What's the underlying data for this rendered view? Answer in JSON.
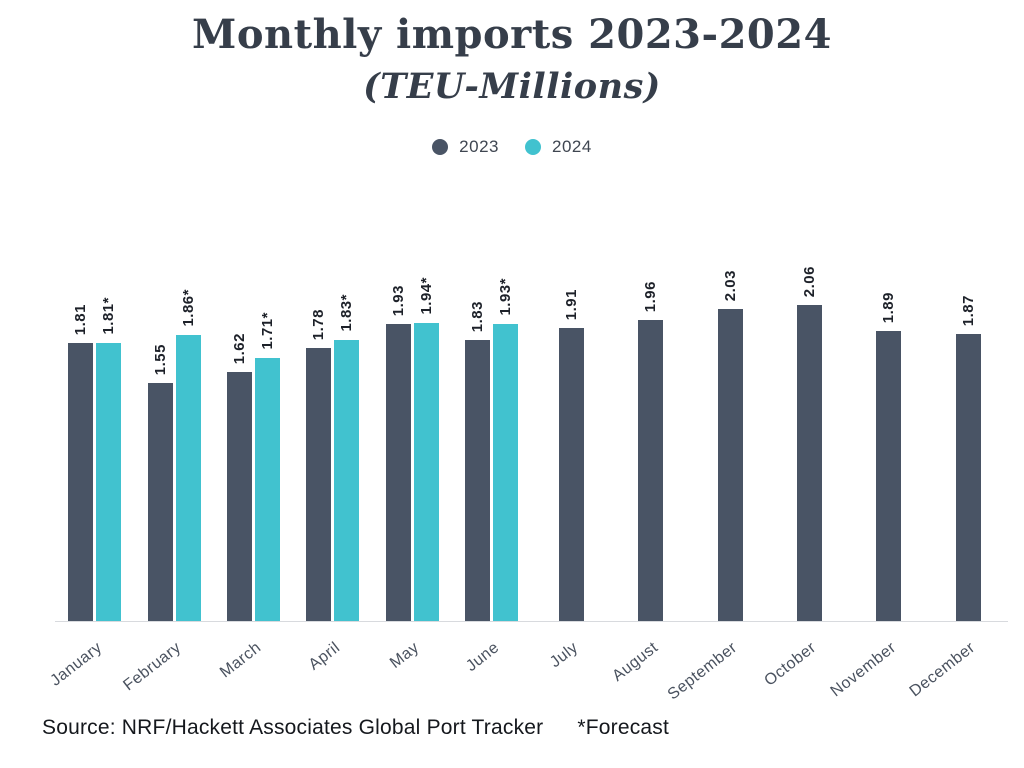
{
  "title": "Monthly imports 2023-2024",
  "subtitle": "(TEU-Millions)",
  "chart_data": {
    "type": "bar",
    "title": "Monthly imports 2023-2024",
    "subtitle": "(TEU-Millions)",
    "categories": [
      "January",
      "February",
      "March",
      "April",
      "May",
      "June",
      "July",
      "August",
      "September",
      "October",
      "November",
      "December"
    ],
    "series": [
      {
        "name": "2023",
        "color": "#495465",
        "values": [
          1.81,
          1.55,
          1.62,
          1.78,
          1.93,
          1.83,
          1.91,
          1.96,
          2.03,
          2.06,
          1.89,
          1.87
        ],
        "labels": [
          "1.81",
          "1.55",
          "1.62",
          "1.78",
          "1.93",
          "1.83",
          "1.91",
          "1.96",
          "2.03",
          "2.06",
          "1.89",
          "1.87"
        ]
      },
      {
        "name": "2024",
        "color": "#41C2CF",
        "values": [
          1.81,
          1.86,
          1.71,
          1.83,
          1.94,
          1.93,
          null,
          null,
          null,
          null,
          null,
          null
        ],
        "labels": [
          "1.81*",
          "1.86*",
          "1.71*",
          "1.83*",
          "1.94*",
          "1.93*",
          null,
          null,
          null,
          null,
          null,
          null
        ]
      }
    ],
    "ylim": [
      0,
      2.2
    ],
    "grid": false,
    "legend_position": "top",
    "value_labels_rotated": true,
    "axis_line_color": "#d8dade"
  },
  "footer": {
    "source": "Source: NRF/Hackett Associates Global Port Tracker",
    "forecast_note": "*Forecast"
  }
}
